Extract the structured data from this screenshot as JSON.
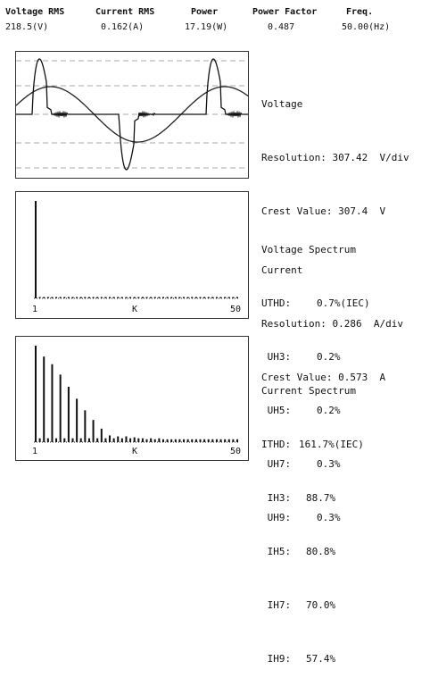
{
  "header": {
    "columns": [
      {
        "label": "Voltage RMS",
        "value": "218.5(V)"
      },
      {
        "label": "Current RMS",
        "value": "0.162(A)"
      },
      {
        "label": "Power",
        "value": "17.19(W)"
      },
      {
        "label": "Power Factor",
        "value": "0.487"
      },
      {
        "label": "Freq.",
        "value": "50.00(Hz)"
      }
    ]
  },
  "waveform": {
    "voltage_title": "Voltage",
    "voltage_resolution": "Resolution: 307.42  V/div",
    "voltage_crest": "Crest Value: 307.4  V",
    "current_title": "Current",
    "current_resolution": "Resolution: 0.286  A/div",
    "current_crest": "Crest Value: 0.573  A"
  },
  "voltage_spectrum": {
    "title": "Voltage Spectrum",
    "rows": [
      {
        "label": "UTHD:",
        "value": "0.7%(IEC)"
      },
      {
        "label": " UH3:",
        "value": "0.2%"
      },
      {
        "label": " UH5:",
        "value": "0.2%"
      },
      {
        "label": " UH7:",
        "value": "0.3%"
      },
      {
        "label": " UH9:",
        "value": "0.3%"
      }
    ],
    "axis": {
      "start": "1",
      "mid": "K",
      "end": "50"
    }
  },
  "current_spectrum": {
    "title": "Current Spectrum",
    "rows": [
      {
        "label": "ITHD:",
        "value": "161.7%(IEC)"
      },
      {
        "label": " IH3:",
        "value": "88.7%"
      },
      {
        "label": " IH5:",
        "value": "80.8%"
      },
      {
        "label": " IH7:",
        "value": "70.0%"
      },
      {
        "label": " IH9:",
        "value": "57.4%"
      }
    ],
    "axis": {
      "start": "1",
      "mid": "K",
      "end": "50"
    }
  },
  "chart_data": [
    {
      "type": "line",
      "x": [
        0,
        2
      ],
      "series": [],
      "grid": true
    },
    {
      "type": "bar",
      "categories_range": [
        1,
        50
      ],
      "values": [
        100,
        0.3,
        0.2,
        0.3,
        0.2,
        0.3,
        0.3,
        0.2,
        0.3,
        0.2,
        0.3,
        0.2,
        0.3,
        0.2,
        0.3,
        0.2,
        0.3,
        0.2,
        0.3,
        0.2,
        0.3,
        0.2,
        0.3,
        0.2,
        0.3,
        0.2,
        0.3,
        0.2,
        0.3,
        0.2,
        0.3,
        0.2,
        0.3,
        0.2,
        0.3,
        0.2,
        0.3,
        0.2,
        0.3,
        0.2,
        0.3,
        0.2,
        0.3,
        0.2,
        0.3,
        0.2,
        0.3,
        0.2,
        0.3,
        0.2
      ],
      "ylim": [
        0,
        100
      ]
    },
    {
      "type": "bar",
      "categories_range": [
        1,
        50
      ],
      "values": [
        100,
        4,
        88.7,
        4,
        80.8,
        4,
        70.0,
        4,
        57.4,
        4,
        45,
        4,
        33,
        4,
        23,
        4,
        14,
        4,
        7,
        4,
        6,
        4,
        6,
        4,
        5,
        4,
        4,
        3,
        4,
        3,
        4,
        3,
        3,
        3,
        3,
        3,
        3,
        3,
        3,
        3,
        3,
        3,
        3,
        3,
        3,
        3,
        3,
        3,
        3,
        3
      ],
      "ylim": [
        0,
        100
      ]
    }
  ]
}
